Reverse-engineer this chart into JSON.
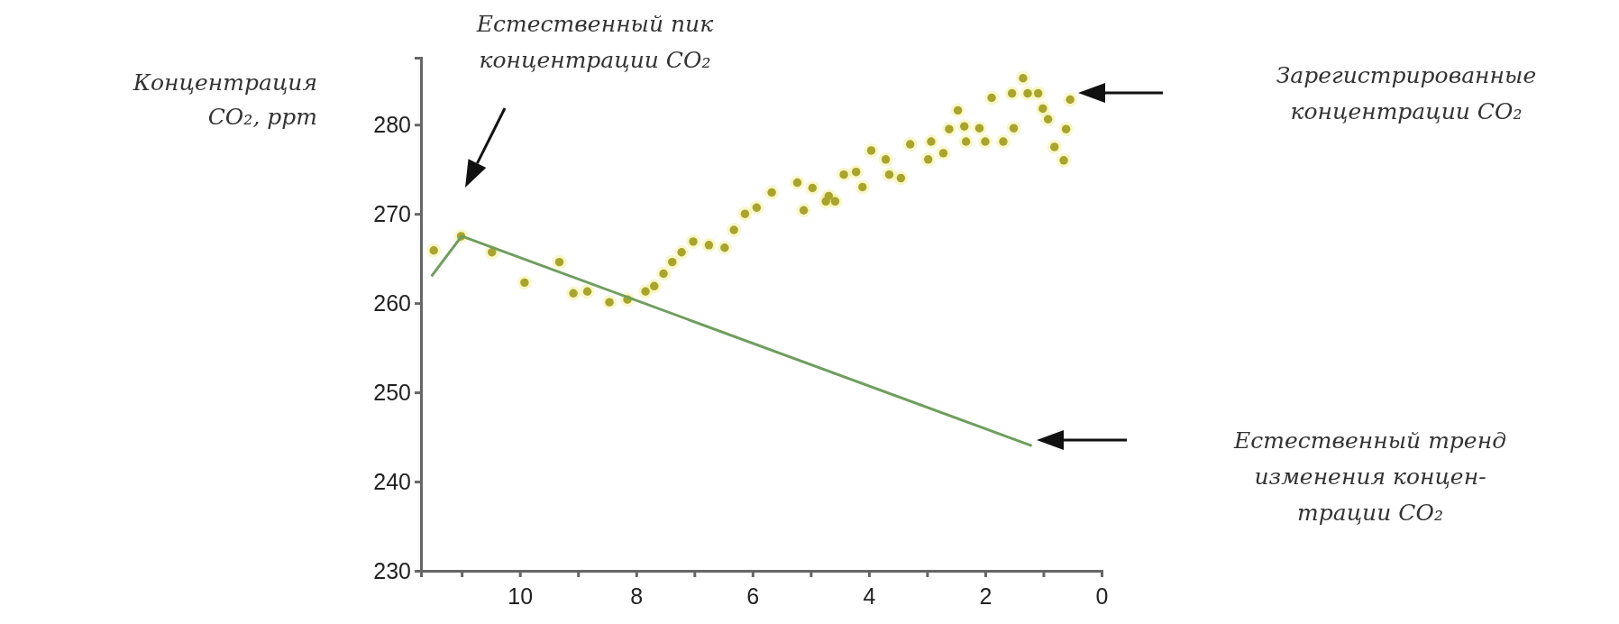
{
  "chart_data": {
    "type": "scatter",
    "ylabel": "Концентрация\nCO₂, ppm",
    "xlim": [
      11.7,
      0
    ],
    "xticks": [
      {
        "value": 11,
        "label": null
      },
      10,
      {
        "value": 9,
        "label": null
      },
      8,
      {
        "value": 7,
        "label": null
      },
      6,
      {
        "value": 5,
        "label": null
      },
      4,
      {
        "value": 3,
        "label": null
      },
      2,
      {
        "value": 1,
        "label": null
      },
      0
    ],
    "ylim": [
      230,
      287.5
    ],
    "yticks": [
      230,
      240,
      250,
      260,
      270,
      280
    ],
    "grid": false,
    "series": [
      {
        "marker": "circle",
        "color": "#a9a42c",
        "x": [
          11.48,
          11.01,
          10.48,
          9.92,
          9.32,
          9.08,
          8.84,
          8.46,
          8.15,
          7.84,
          7.69,
          7.53,
          7.38,
          7.22,
          7.02,
          6.75,
          6.48,
          6.32,
          6.13,
          5.93,
          5.67,
          5.23,
          5.12,
          4.97,
          4.74,
          4.43,
          4.69,
          4.58,
          4.22,
          4.11,
          3.96,
          3.71,
          3.65,
          3.45,
          3.29,
          2.98,
          2.93,
          2.72,
          2.62,
          2.47,
          2.36,
          2.33,
          2.1,
          2.0,
          1.89,
          1.69,
          1.54,
          1.51,
          1.35,
          1.27,
          1.09,
          1.01,
          0.92,
          0.81,
          0.65,
          0.61,
          0.54
        ],
        "values": [
          265.9,
          267.5,
          265.7,
          262.3,
          264.6,
          261.1,
          261.3,
          260.1,
          260.4,
          261.3,
          261.9,
          263.3,
          264.6,
          265.7,
          266.9,
          266.5,
          266.2,
          268.2,
          270.0,
          270.7,
          272.4,
          273.5,
          270.4,
          272.9,
          271.4,
          274.4,
          272.0,
          271.4,
          274.7,
          273.0,
          277.1,
          276.1,
          274.4,
          274.0,
          277.8,
          276.1,
          278.1,
          276.8,
          279.5,
          281.6,
          279.8,
          278.1,
          279.6,
          278.1,
          283.0,
          278.1,
          283.5,
          279.6,
          285.2,
          283.5,
          283.5,
          281.8,
          280.6,
          277.5,
          276.0,
          279.5,
          282.8
        ]
      },
      {
        "type": "line",
        "marker": "none",
        "color": "#6f9e5f",
        "x": [
          11.52,
          11.0,
          1.2
        ],
        "values": [
          263.0,
          267.5,
          244.0
        ]
      }
    ],
    "annotations": [
      "Естественный пик\nконцентрации CO₂",
      "Зарегистрированные\nконцентрации CO₂",
      "Естественный тренд\nизменения концен-\nтрации CO₂"
    ]
  }
}
